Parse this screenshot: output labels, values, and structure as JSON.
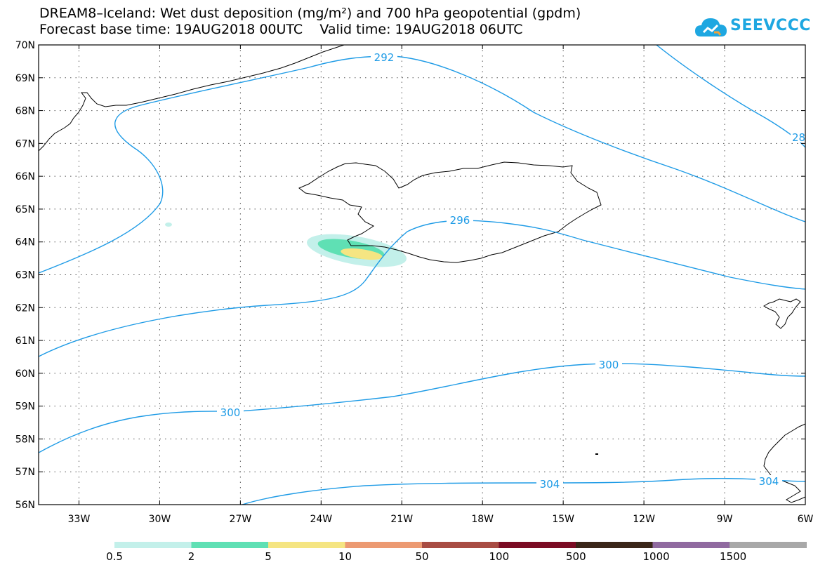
{
  "title": {
    "line1": "DREAM8–Iceland: Wet dust deposition (mg/m²) and 700 hPa geopotential (gpdm)",
    "line2": "Forecast base time: 19AUG2018 00UTC    Valid time: 19AUG2018 06UTC"
  },
  "logo": {
    "text": "SEEVCCC",
    "icon": "cloud-icon"
  },
  "map": {
    "lon_min": -34.5,
    "lon_max": -6,
    "lat_min": 56,
    "lat_max": 70,
    "lat_ticks": [
      "70N",
      "69N",
      "68N",
      "67N",
      "66N",
      "65N",
      "64N",
      "63N",
      "62N",
      "61N",
      "60N",
      "59N",
      "58N",
      "57N",
      "56N"
    ],
    "lon_ticks": [
      "33W",
      "30W",
      "27W",
      "24W",
      "21W",
      "18W",
      "15W",
      "12W",
      "9W",
      "6W"
    ],
    "contour_color": "#1e9be6",
    "contour_labels": [
      "292",
      "296",
      "300",
      "300",
      "304",
      "304",
      "28"
    ]
  },
  "legend": {
    "labels": [
      "0.5",
      "2",
      "5",
      "10",
      "50",
      "100",
      "500",
      "1000",
      "1500"
    ],
    "colors": [
      "#c3f0ea",
      "#5fe0b4",
      "#f5e582",
      "#ec9a72",
      "#a84c43",
      "#7b0c24",
      "#3a2619",
      "#906aa0",
      "#a8a8a8"
    ]
  }
}
